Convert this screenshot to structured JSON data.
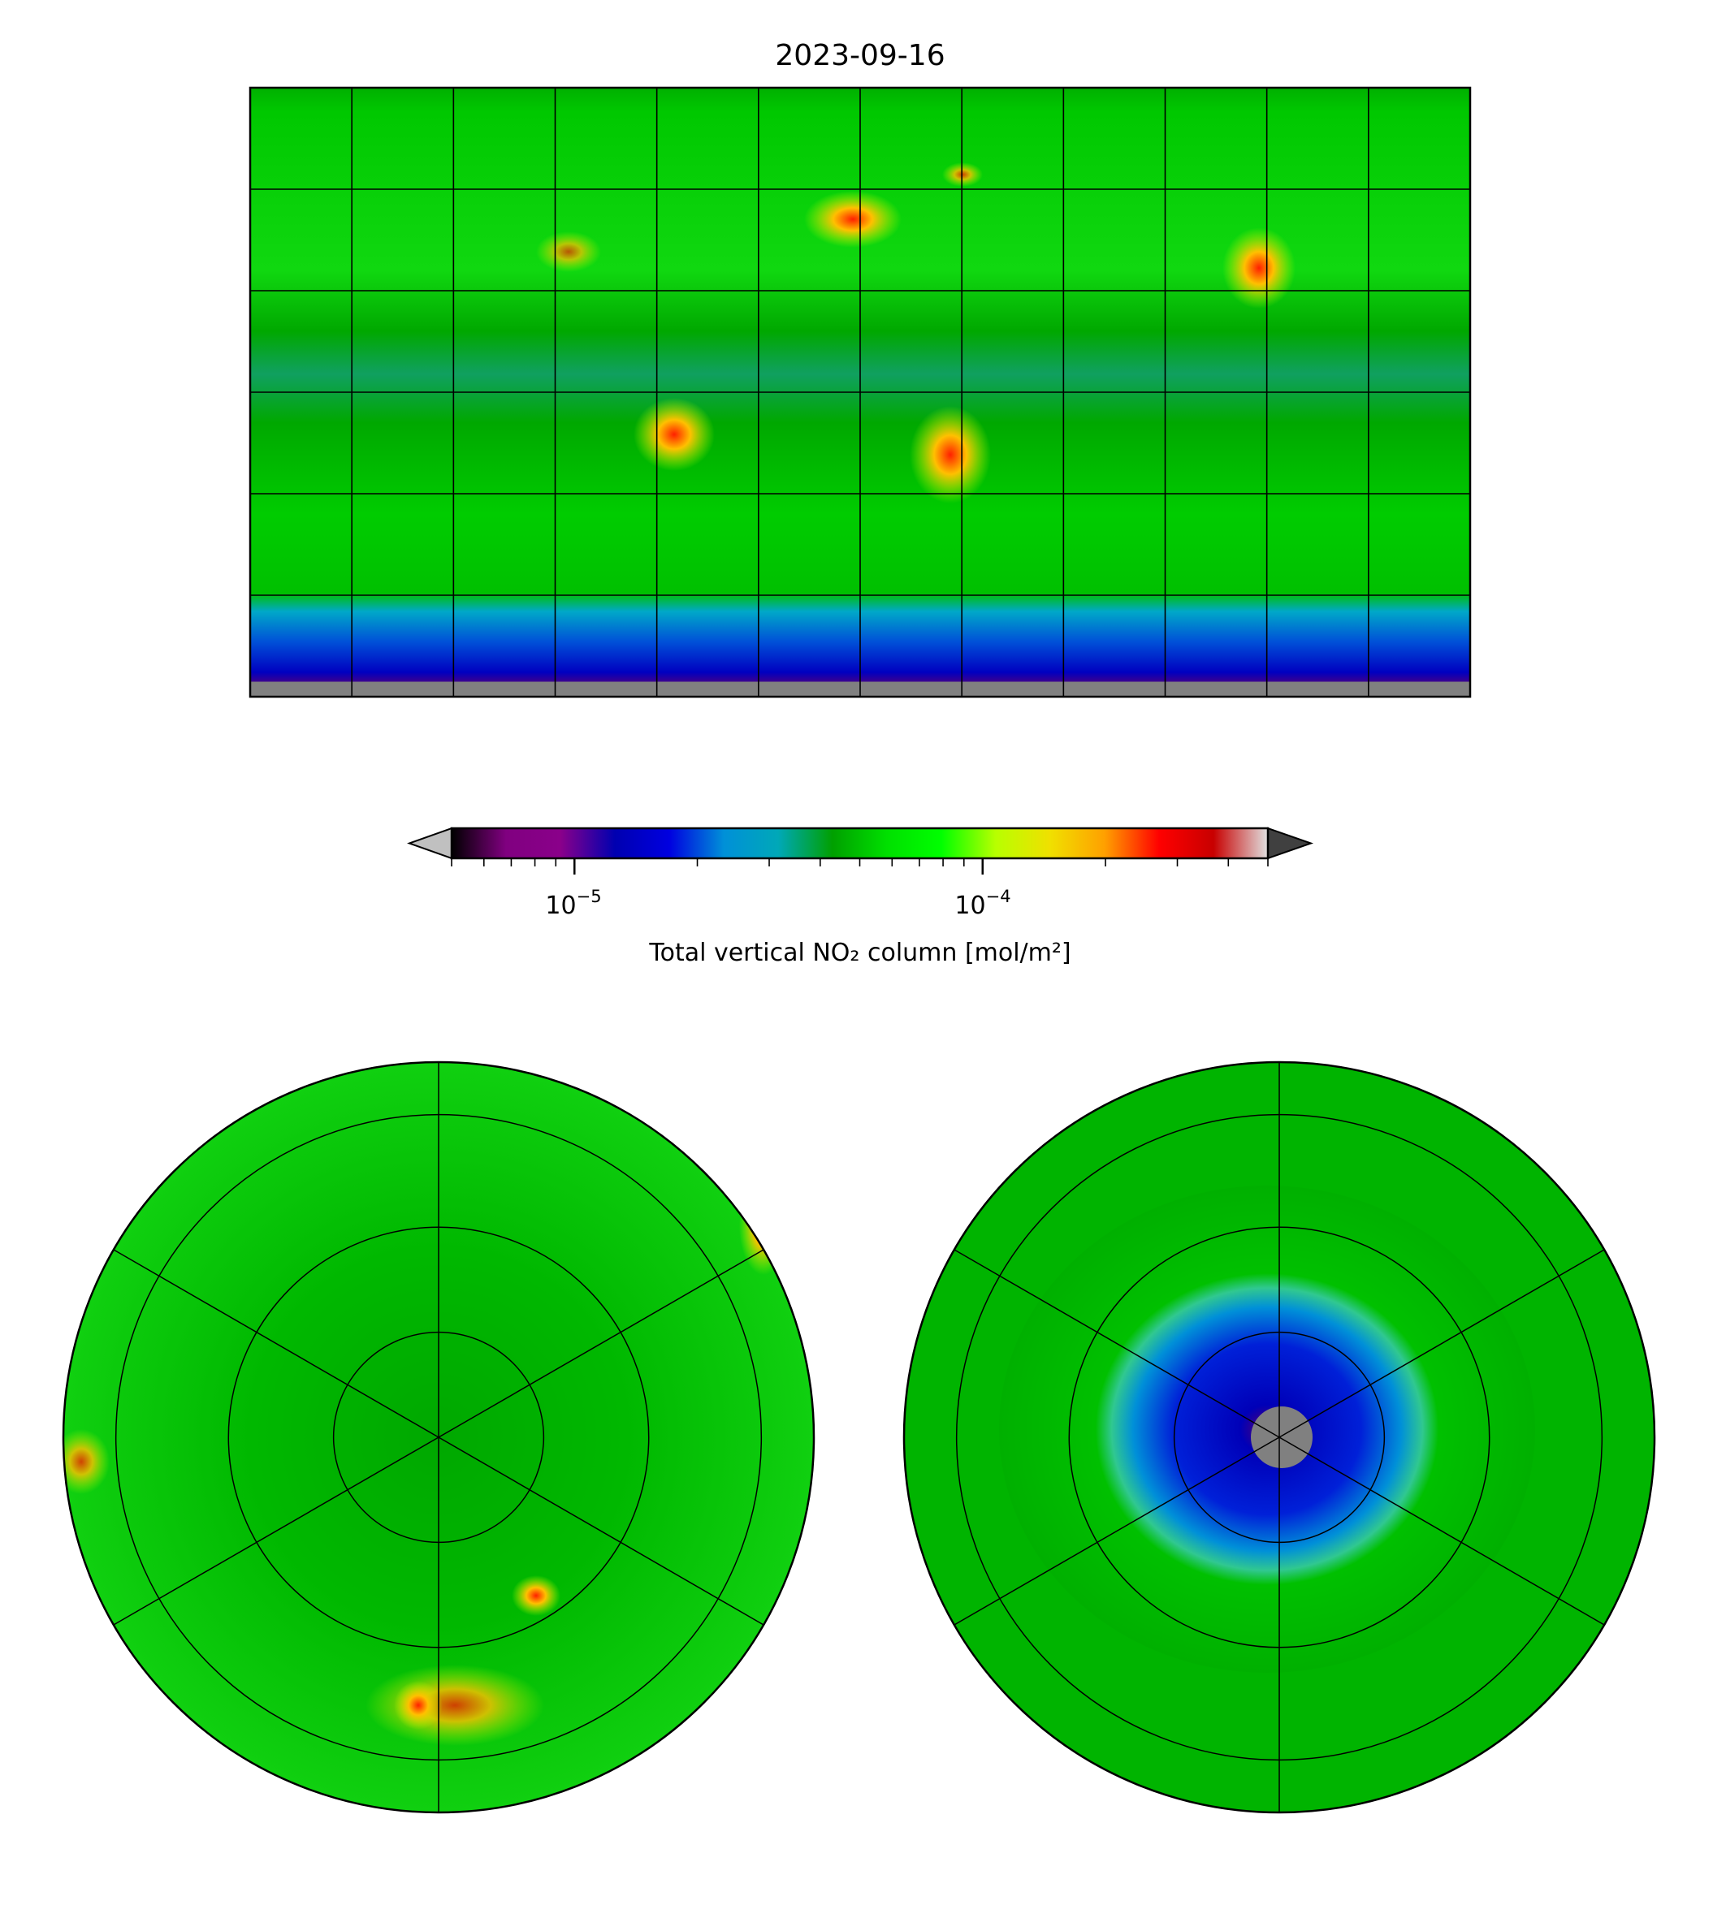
{
  "chart_data": [
    {
      "type": "heatmap",
      "title": "2023-09-16",
      "projection": "plate-carree",
      "lon_range": [
        -180,
        180
      ],
      "lat_range": [
        -90,
        90
      ],
      "gridlines": {
        "lon_step": 30,
        "lat_step": 30
      },
      "hotspots": [
        {
          "region": "Western Europe",
          "level": "high"
        },
        {
          "region": "Eastern China",
          "level": "high"
        },
        {
          "region": "Central South America",
          "level": "high"
        },
        {
          "region": "Southern Africa",
          "level": "high"
        },
        {
          "region": "Eastern North America",
          "level": "moderate"
        },
        {
          "region": "Middle East",
          "level": "moderate"
        }
      ],
      "low_region": "Antarctic (southern high latitudes)",
      "missing_value_color": "#808080"
    },
    {
      "type": "heatmap",
      "projection": "north-polar-stereographic",
      "gridlines": {
        "meridian_step": 60
      }
    },
    {
      "type": "heatmap",
      "projection": "south-polar-stereographic",
      "gridlines": {
        "meridian_step": 60
      }
    }
  ],
  "colorbar": {
    "label": "Total vertical NO₂ column [mol/m²]",
    "scale": "log",
    "range": [
      5e-06,
      0.0005
    ],
    "ticks": [
      {
        "value": 1e-05,
        "base": "10",
        "exp": "−5"
      },
      {
        "value": 0.0001,
        "base": "10",
        "exp": "−4"
      }
    ],
    "extend": "both",
    "under_color": "#c0c0c0",
    "over_color": "#404040",
    "colors": [
      "#000000",
      "#800080",
      "#8a008a",
      "#0000b0",
      "#0000e0",
      "#0090d8",
      "#00a8b8",
      "#00a000",
      "#00e000",
      "#00ff00",
      "#b8ff00",
      "#f0e000",
      "#ffa000",
      "#ff0000",
      "#c80000",
      "#e0e0e0"
    ]
  }
}
